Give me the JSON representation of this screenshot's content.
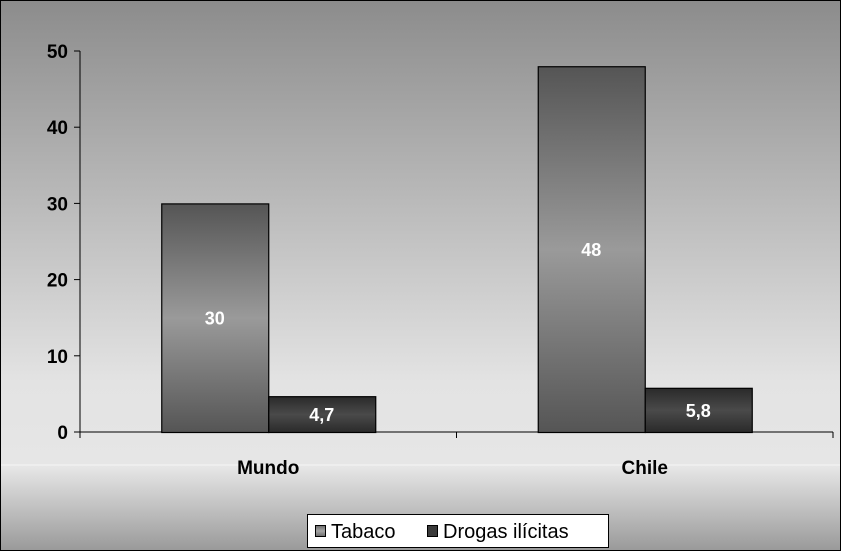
{
  "chart_data": {
    "type": "bar",
    "categories": [
      "Mundo",
      "Chile"
    ],
    "series": [
      {
        "name": "Tabaco",
        "values": [
          30,
          48
        ],
        "color": "#7a7a7a"
      },
      {
        "name": "Drogas ilícitas",
        "values": [
          4.7,
          5.8
        ],
        "color": "#3a3a3a"
      }
    ],
    "data_labels": [
      [
        "30",
        "48"
      ],
      [
        "4,7",
        "5,8"
      ]
    ],
    "yticks": [
      "0",
      "10",
      "20",
      "30",
      "40",
      "50"
    ],
    "ytick_values": [
      0,
      10,
      20,
      30,
      40,
      50
    ],
    "ylim": [
      0,
      50
    ],
    "title": "",
    "xlabel": "",
    "ylabel": "",
    "legend_position": "bottom",
    "grid": false,
    "colors": {
      "plot_bg_top": "#8c8c8c",
      "plot_bg_bottom": "#e6e6e6",
      "border": "#000000",
      "label_text": "#ffffff",
      "axis_text": "#000000"
    }
  }
}
